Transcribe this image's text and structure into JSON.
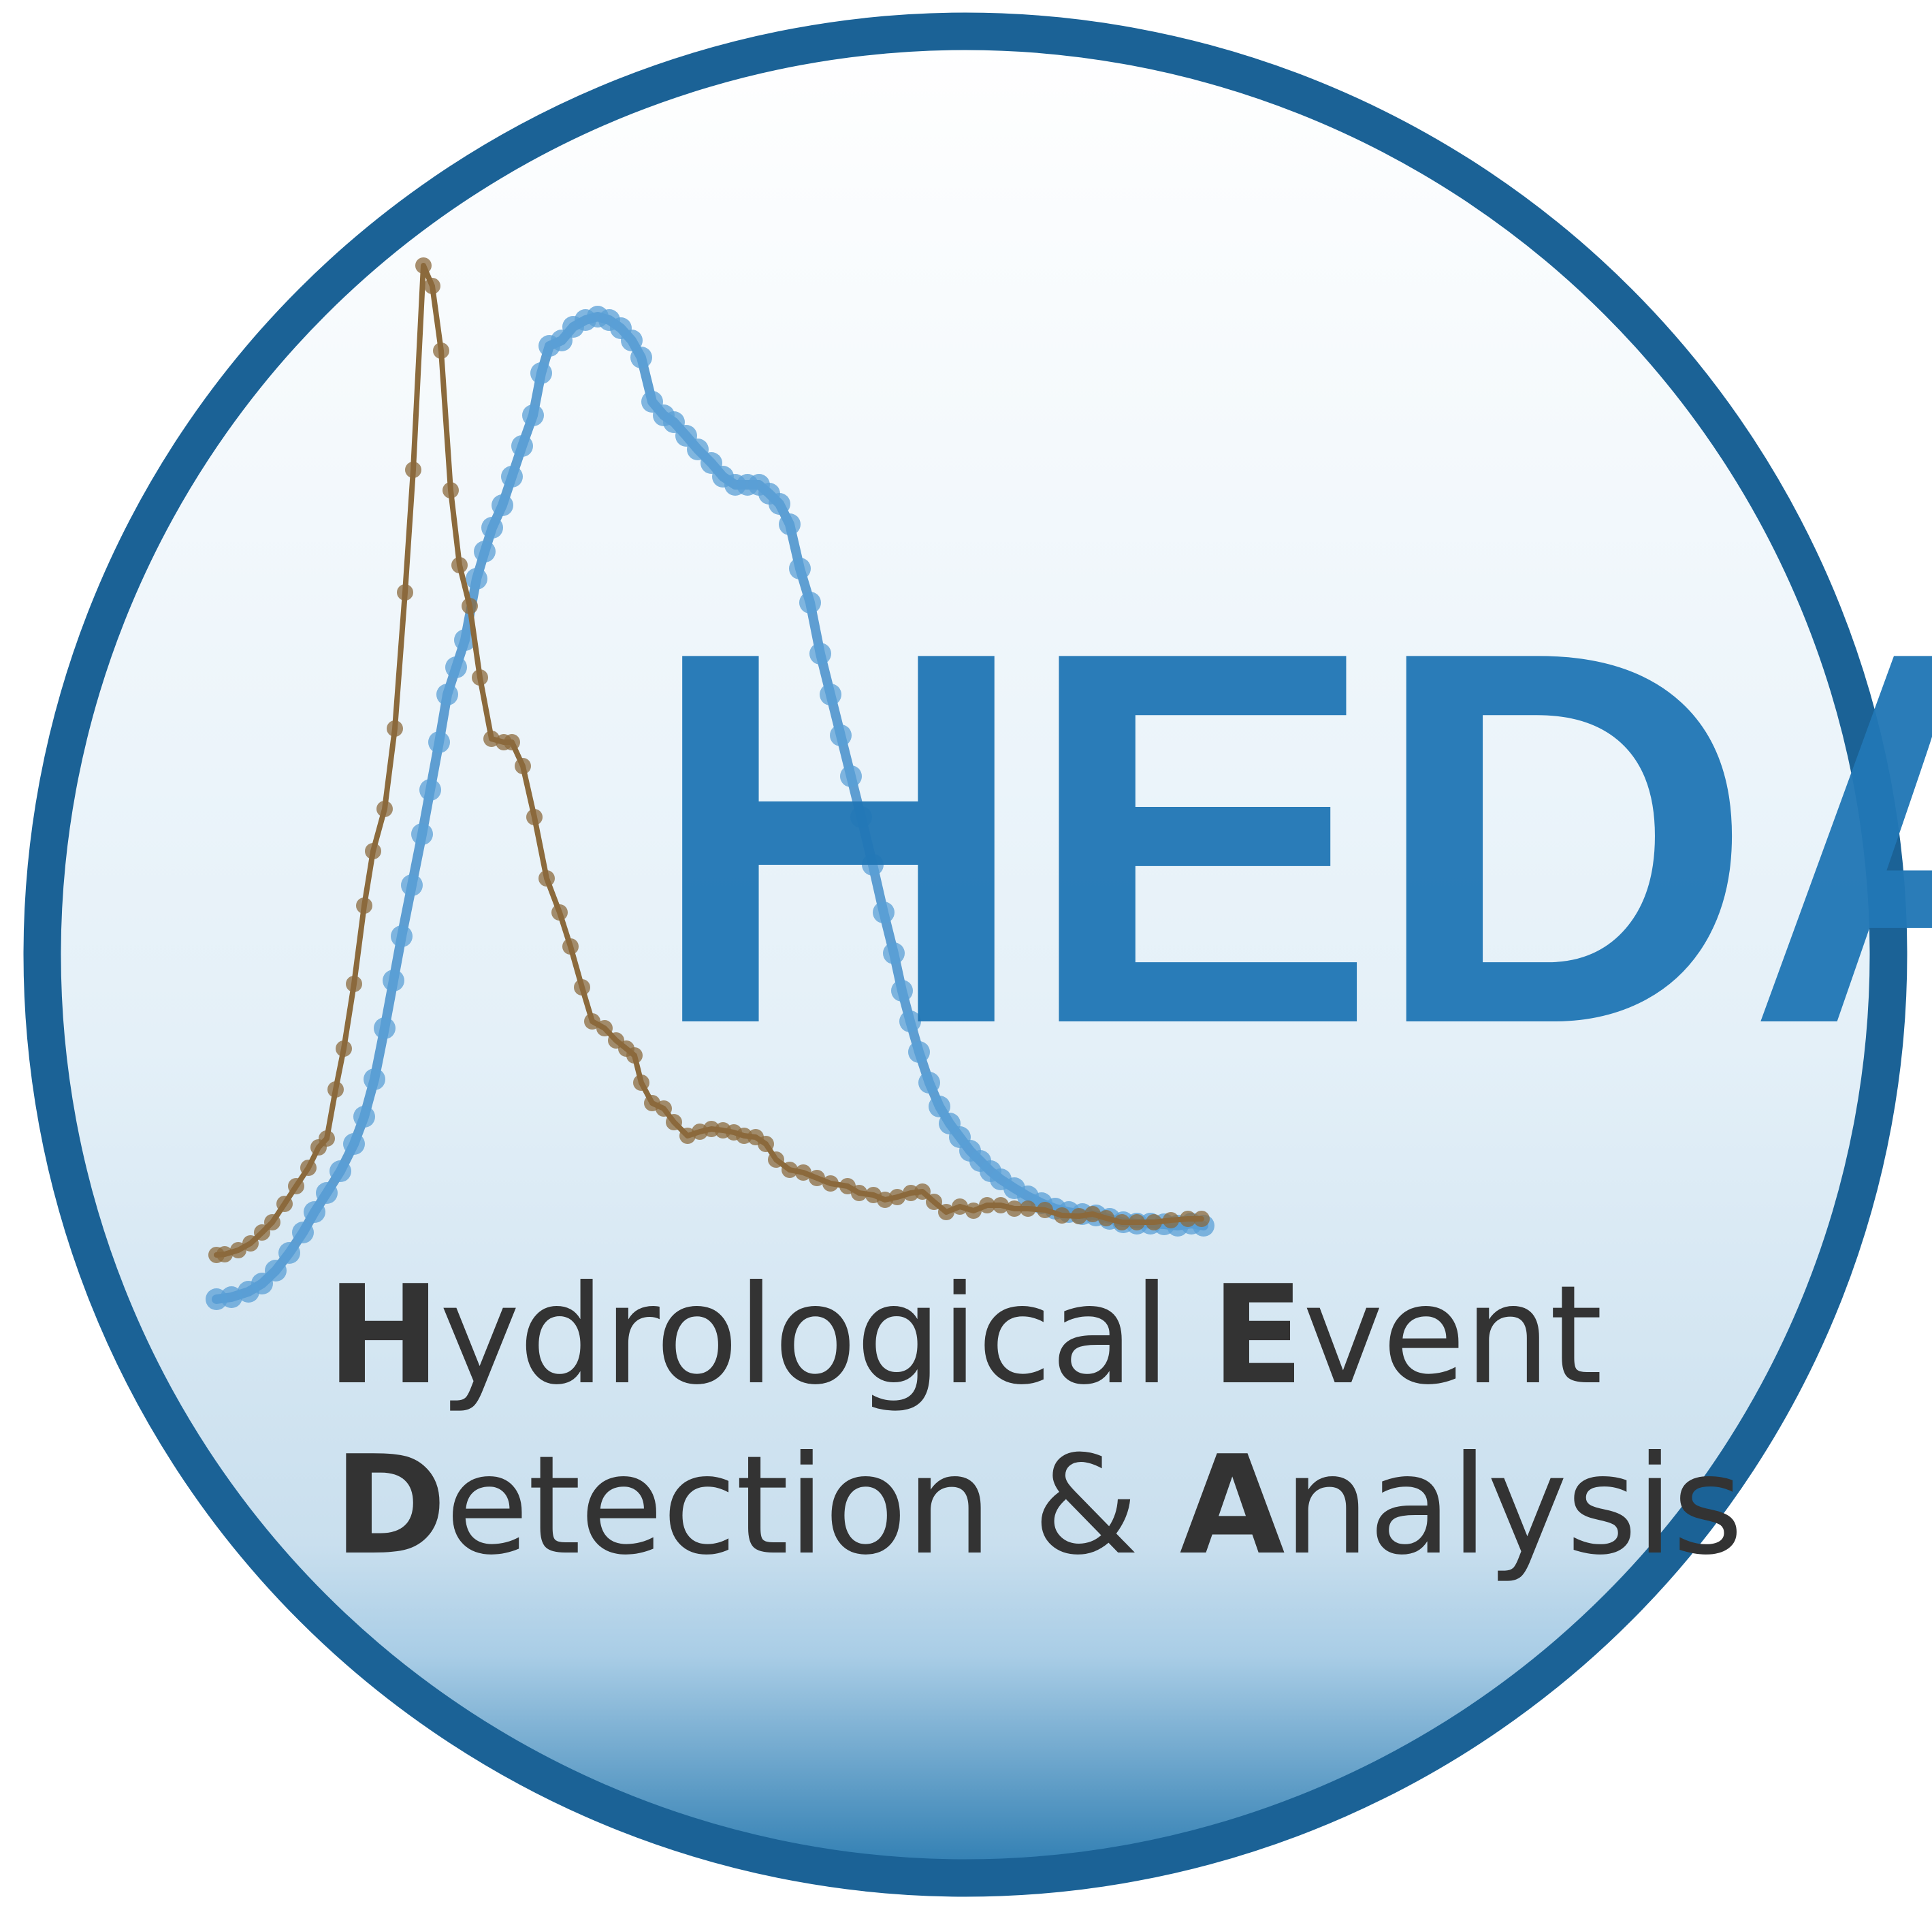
{
  "logo": {
    "acronym": "HEDA",
    "line1": {
      "initial_1": "H",
      "rest_1": "ydrological ",
      "initial_2": "E",
      "rest_2": "vent"
    },
    "line2": {
      "initial_1": "D",
      "rest_1": "etection & ",
      "initial_2": "A",
      "rest_2": "nalysis"
    }
  },
  "colors": {
    "ring": "#1b6296",
    "acronym": "#2177b5",
    "text": "#333333",
    "brown_series": "#8b6a3c",
    "blue_series": "#5a9fd6",
    "background_top": "#ffffff",
    "background_mid": "#d7e8f3",
    "background_bottom": "#2b7bb0"
  }
}
